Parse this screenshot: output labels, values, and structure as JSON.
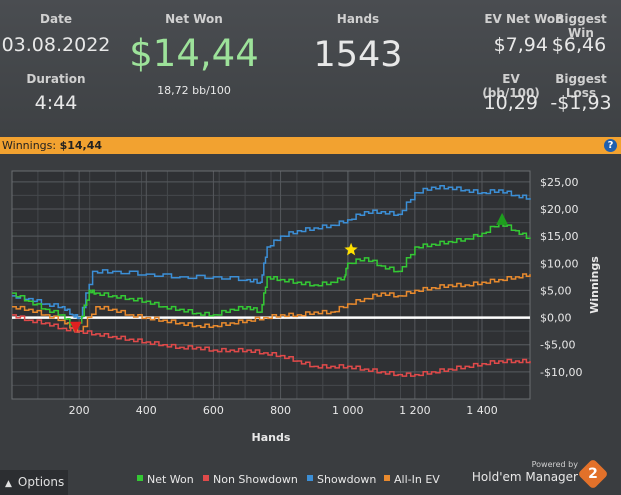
{
  "stats": {
    "date_label": "Date",
    "date_value": "03.08.2022",
    "duration_label": "Duration",
    "duration_value": "4:44",
    "net_won_label": "Net Won",
    "net_won_value": "$14,44",
    "net_won_sub": "18,72 bb/100",
    "hands_label": "Hands",
    "hands_value": "1543",
    "ev_net_won_label": "EV Net Won",
    "ev_net_won_value": "$7,94",
    "biggest_win_label": "Biggest Win",
    "biggest_win_value": "$6,46",
    "ev_bb_label": "EV (bb/100)",
    "ev_bb_value": "10,29",
    "biggest_loss_label": "Biggest Loss",
    "biggest_loss_value": "-$1,93"
  },
  "winbar": {
    "label": "Winnings:",
    "value": "$14,44",
    "help": "?"
  },
  "footer": {
    "options_label": "Options",
    "options_icon": "caret-up-icon",
    "powered_by": "Powered by",
    "brand": "Hold'em Manager",
    "brand_number": "2"
  },
  "colors": {
    "net_won": "#34c934",
    "non_showdown": "#e04a4a",
    "showdown": "#3c8fd6",
    "allin_ev": "#e88a2e",
    "zero_line": "#ffffff",
    "accent_bar": "#f2a230",
    "net_won_big": "#9de29a"
  },
  "chart_data": {
    "type": "line",
    "xlabel": "Hands",
    "ylabel": "Winnings",
    "xlim": [
      0,
      1543
    ],
    "ylim": [
      -15,
      27
    ],
    "x_ticks": [
      200,
      400,
      600,
      800,
      1000,
      1200,
      1400
    ],
    "x_tick_labels": [
      "200",
      "400",
      "600",
      "800",
      "1 000",
      "1 200",
      "1 400"
    ],
    "y_ticks": [
      -10,
      -5,
      0,
      5,
      10,
      15,
      20,
      25
    ],
    "y_tick_labels": [
      "-$10,00",
      "-$5,00",
      "$0,00",
      "$5,00",
      "$10,00",
      "$15,00",
      "$20,00",
      "$25,00"
    ],
    "grid": true,
    "legend_position": "bottom",
    "series": [
      {
        "name": "Net Won",
        "color_key": "net_won",
        "x": [
          0,
          50,
          100,
          150,
          180,
          200,
          230,
          250,
          300,
          350,
          400,
          450,
          500,
          550,
          600,
          650,
          700,
          740,
          760,
          800,
          850,
          900,
          950,
          990,
          1000,
          1050,
          1100,
          1150,
          1200,
          1250,
          1300,
          1350,
          1400,
          1450,
          1500,
          1543
        ],
        "y": [
          4.5,
          3.0,
          1.5,
          0.5,
          -1.5,
          -1.0,
          5.0,
          4.5,
          4.0,
          3.5,
          3.0,
          2.0,
          1.5,
          0.8,
          0.5,
          1.5,
          2.0,
          1.0,
          7.5,
          7.0,
          6.5,
          6.0,
          6.5,
          7.5,
          10.0,
          11.0,
          9.5,
          8.5,
          13.0,
          13.5,
          14.0,
          14.5,
          15.5,
          17.5,
          16.0,
          14.5
        ]
      },
      {
        "name": "Non Showdown",
        "color_key": "non_showdown",
        "x": [
          0,
          50,
          100,
          150,
          200,
          250,
          300,
          350,
          400,
          450,
          500,
          550,
          600,
          650,
          700,
          750,
          800,
          850,
          900,
          950,
          1000,
          1050,
          1100,
          1150,
          1200,
          1250,
          1300,
          1350,
          1400,
          1450,
          1500,
          1543
        ],
        "y": [
          0.5,
          -0.5,
          -1.0,
          -2.0,
          -2.5,
          -3.0,
          -3.5,
          -4.0,
          -4.5,
          -5.0,
          -5.5,
          -5.5,
          -6.0,
          -6.0,
          -6.0,
          -6.5,
          -7.0,
          -8.0,
          -9.0,
          -9.0,
          -9.0,
          -9.5,
          -10.0,
          -10.5,
          -10.5,
          -10.0,
          -9.5,
          -9.0,
          -8.5,
          -8.0,
          -8.0,
          -8.0
        ]
      },
      {
        "name": "Showdown",
        "color_key": "showdown",
        "x": [
          0,
          50,
          100,
          150,
          180,
          200,
          240,
          300,
          400,
          500,
          600,
          700,
          740,
          760,
          800,
          850,
          900,
          950,
          1000,
          1050,
          1100,
          1150,
          1200,
          1250,
          1300,
          1350,
          1400,
          1450,
          1500,
          1543
        ],
        "y": [
          4.0,
          3.5,
          2.5,
          2.0,
          0.5,
          0.0,
          8.5,
          8.5,
          8.0,
          7.5,
          7.5,
          7.0,
          6.5,
          13.0,
          15.0,
          16.0,
          16.5,
          17.0,
          18.0,
          19.5,
          19.5,
          19.0,
          23.0,
          24.0,
          24.0,
          23.5,
          23.0,
          23.5,
          22.5,
          22.0
        ]
      },
      {
        "name": "All-In EV",
        "color_key": "allin_ev",
        "x": [
          0,
          50,
          100,
          150,
          180,
          200,
          250,
          300,
          350,
          400,
          450,
          500,
          550,
          600,
          650,
          700,
          750,
          800,
          850,
          900,
          950,
          1000,
          1050,
          1100,
          1150,
          1200,
          1250,
          1300,
          1350,
          1400,
          1450,
          1500,
          1543
        ],
        "y": [
          2.0,
          1.5,
          0.5,
          -0.5,
          -2.0,
          -2.5,
          2.0,
          1.5,
          0.5,
          0.0,
          -0.5,
          -1.0,
          -1.5,
          -1.5,
          -1.0,
          -0.5,
          0.0,
          0.5,
          0.5,
          1.0,
          1.0,
          2.5,
          3.5,
          4.5,
          4.0,
          5.0,
          5.5,
          6.0,
          6.0,
          6.5,
          7.0,
          7.5,
          8.0
        ]
      }
    ],
    "markers": [
      {
        "name": "biggest-loss-marker",
        "shape": "triangle-down",
        "x": 190,
        "y": -1.7,
        "color": "#e02020"
      },
      {
        "name": "star-marker",
        "shape": "star",
        "x": 1010,
        "y": 12.5,
        "color": "#ffe000"
      },
      {
        "name": "biggest-win-marker",
        "shape": "triangle-up",
        "x": 1460,
        "y": 18.0,
        "color": "#1e9e1e"
      }
    ],
    "legend": [
      "Net Won",
      "Non Showdown",
      "Showdown",
      "All-In EV"
    ]
  }
}
